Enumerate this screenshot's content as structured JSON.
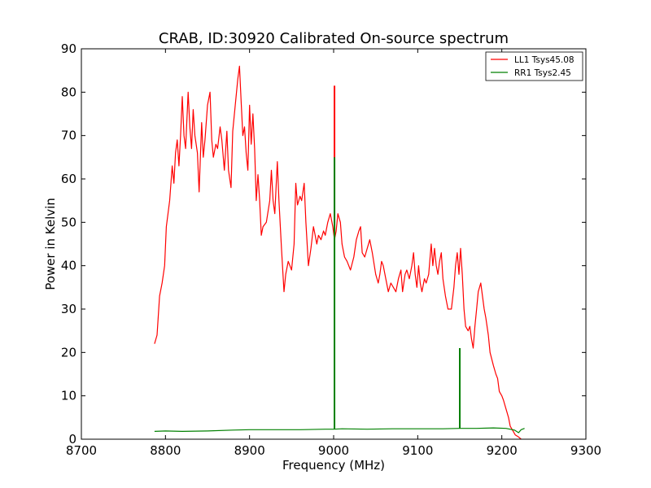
{
  "chart_data": {
    "type": "line",
    "title": "CRAB, ID:30920 Calibrated On-source spectrum",
    "xlabel": "Frequency (MHz)",
    "ylabel": "Power in Kelvin",
    "xlim": [
      8700,
      9300
    ],
    "ylim": [
      0,
      90
    ],
    "xticks": [
      8700,
      8800,
      8900,
      9000,
      9100,
      9200,
      9300
    ],
    "yticks": [
      0,
      10,
      20,
      30,
      40,
      50,
      60,
      70,
      80,
      90
    ],
    "grid": false,
    "legend_position": "top-right",
    "series": [
      {
        "name": "LL1 Tsys45.08",
        "color": "#ff0000",
        "points": [
          [
            8787,
            22
          ],
          [
            8790,
            24
          ],
          [
            8793,
            33
          ],
          [
            8796,
            36
          ],
          [
            8799,
            40
          ],
          [
            8801,
            49
          ],
          [
            8805,
            55
          ],
          [
            8808,
            63
          ],
          [
            8810,
            59
          ],
          [
            8812,
            66
          ],
          [
            8814,
            69
          ],
          [
            8816,
            63
          ],
          [
            8818,
            70
          ],
          [
            8820,
            79
          ],
          [
            8822,
            70
          ],
          [
            8824,
            67
          ],
          [
            8827,
            80
          ],
          [
            8829,
            72
          ],
          [
            8831,
            67
          ],
          [
            8833,
            76
          ],
          [
            8835,
            70
          ],
          [
            8838,
            66
          ],
          [
            8840,
            57
          ],
          [
            8843,
            73
          ],
          [
            8845,
            65
          ],
          [
            8847,
            69
          ],
          [
            8850,
            77
          ],
          [
            8853,
            80
          ],
          [
            8855,
            69
          ],
          [
            8857,
            65
          ],
          [
            8860,
            68
          ],
          [
            8862,
            67
          ],
          [
            8865,
            72
          ],
          [
            8867,
            69
          ],
          [
            8870,
            62
          ],
          [
            8873,
            71
          ],
          [
            8875,
            62
          ],
          [
            8878,
            58
          ],
          [
            8880,
            71
          ],
          [
            8883,
            77
          ],
          [
            8886,
            83
          ],
          [
            8888,
            86
          ],
          [
            8890,
            78
          ],
          [
            8892,
            70
          ],
          [
            8894,
            72
          ],
          [
            8896,
            66
          ],
          [
            8898,
            62
          ],
          [
            8900,
            77
          ],
          [
            8902,
            68
          ],
          [
            8904,
            75
          ],
          [
            8906,
            67
          ],
          [
            8908,
            55
          ],
          [
            8910,
            61
          ],
          [
            8912,
            55
          ],
          [
            8914,
            47
          ],
          [
            8916,
            49
          ],
          [
            8920,
            50
          ],
          [
            8924,
            55
          ],
          [
            8926,
            62
          ],
          [
            8928,
            55
          ],
          [
            8930,
            52
          ],
          [
            8933,
            64
          ],
          [
            8935,
            55
          ],
          [
            8938,
            44
          ],
          [
            8941,
            34
          ],
          [
            8943,
            38
          ],
          [
            8946,
            41
          ],
          [
            8950,
            39
          ],
          [
            8953,
            45
          ],
          [
            8955,
            59
          ],
          [
            8957,
            54
          ],
          [
            8960,
            56
          ],
          [
            8962,
            55
          ],
          [
            8965,
            59
          ],
          [
            8967,
            50
          ],
          [
            8970,
            40
          ],
          [
            8973,
            44
          ],
          [
            8976,
            49
          ],
          [
            8978,
            47
          ],
          [
            8980,
            45
          ],
          [
            8982,
            47
          ],
          [
            8985,
            46
          ],
          [
            8988,
            48
          ],
          [
            8990,
            47
          ],
          [
            8993,
            50
          ],
          [
            8996,
            52
          ],
          [
            8999,
            49
          ],
          [
            9001,
            46
          ],
          [
            9003,
            48
          ],
          [
            9005,
            52
          ],
          [
            9008,
            50
          ],
          [
            9010,
            45
          ],
          [
            9013,
            42
          ],
          [
            9016,
            41
          ],
          [
            9020,
            39
          ],
          [
            9024,
            42
          ],
          [
            9027,
            46
          ],
          [
            9030,
            48
          ],
          [
            9032,
            49
          ],
          [
            9034,
            43
          ],
          [
            9037,
            42
          ],
          [
            9040,
            44
          ],
          [
            9043,
            46
          ],
          [
            9046,
            43
          ],
          [
            9050,
            38
          ],
          [
            9053,
            36
          ],
          [
            9055,
            38
          ],
          [
            9057,
            41
          ],
          [
            9059,
            40
          ],
          [
            9062,
            37
          ],
          [
            9065,
            34
          ],
          [
            9068,
            36
          ],
          [
            9071,
            35
          ],
          [
            9074,
            34
          ],
          [
            9077,
            37
          ],
          [
            9080,
            39
          ],
          [
            9082,
            34
          ],
          [
            9085,
            38
          ],
          [
            9087,
            39
          ],
          [
            9090,
            37
          ],
          [
            9093,
            40
          ],
          [
            9095,
            43
          ],
          [
            9097,
            38
          ],
          [
            9099,
            35
          ],
          [
            9101,
            40
          ],
          [
            9103,
            36
          ],
          [
            9105,
            34
          ],
          [
            9108,
            37
          ],
          [
            9110,
            36
          ],
          [
            9113,
            38
          ],
          [
            9116,
            45
          ],
          [
            9118,
            40
          ],
          [
            9120,
            44
          ],
          [
            9122,
            40
          ],
          [
            9124,
            38
          ],
          [
            9126,
            41
          ],
          [
            9128,
            43
          ],
          [
            9130,
            37
          ],
          [
            9133,
            33
          ],
          [
            9136,
            30
          ],
          [
            9140,
            30
          ],
          [
            9143,
            35
          ],
          [
            9145,
            40
          ],
          [
            9147,
            43
          ],
          [
            9149,
            38
          ],
          [
            9151,
            44
          ],
          [
            9153,
            38
          ],
          [
            9155,
            30
          ],
          [
            9157,
            26
          ],
          [
            9160,
            25
          ],
          [
            9162,
            26
          ],
          [
            9164,
            23
          ],
          [
            9166,
            21
          ],
          [
            9168,
            26
          ],
          [
            9170,
            30
          ],
          [
            9172,
            34
          ],
          [
            9175,
            36
          ],
          [
            9177,
            33
          ],
          [
            9179,
            30
          ],
          [
            9181,
            28
          ],
          [
            9184,
            24
          ],
          [
            9186,
            20
          ],
          [
            9190,
            17
          ],
          [
            9193,
            15
          ],
          [
            9195,
            14
          ],
          [
            9197,
            11
          ],
          [
            9200,
            10
          ],
          [
            9202,
            9
          ],
          [
            9205,
            7
          ],
          [
            9208,
            5
          ],
          [
            9210,
            3
          ],
          [
            9213,
            2
          ],
          [
            9216,
            1
          ],
          [
            9220,
            0.5
          ],
          [
            9223,
            0
          ]
        ],
        "spikes": [
          [
            9001,
            81.5
          ]
        ]
      },
      {
        "name": "RR1 Tsys2.45",
        "color": "#008000",
        "points": [
          [
            8787,
            1.8
          ],
          [
            8800,
            1.9
          ],
          [
            8820,
            1.8
          ],
          [
            8850,
            1.9
          ],
          [
            8880,
            2.1
          ],
          [
            8900,
            2.2
          ],
          [
            8930,
            2.2
          ],
          [
            8960,
            2.2
          ],
          [
            8990,
            2.3
          ],
          [
            9000,
            2.3
          ],
          [
            9010,
            2.4
          ],
          [
            9040,
            2.3
          ],
          [
            9070,
            2.4
          ],
          [
            9100,
            2.4
          ],
          [
            9130,
            2.4
          ],
          [
            9150,
            2.5
          ],
          [
            9170,
            2.5
          ],
          [
            9190,
            2.6
          ],
          [
            9205,
            2.5
          ],
          [
            9215,
            2.1
          ],
          [
            9220,
            1.5
          ],
          [
            9223,
            2.2
          ],
          [
            9227,
            2.5
          ]
        ],
        "spikes": [
          [
            9001,
            65
          ],
          [
            9150,
            21
          ]
        ]
      }
    ]
  }
}
